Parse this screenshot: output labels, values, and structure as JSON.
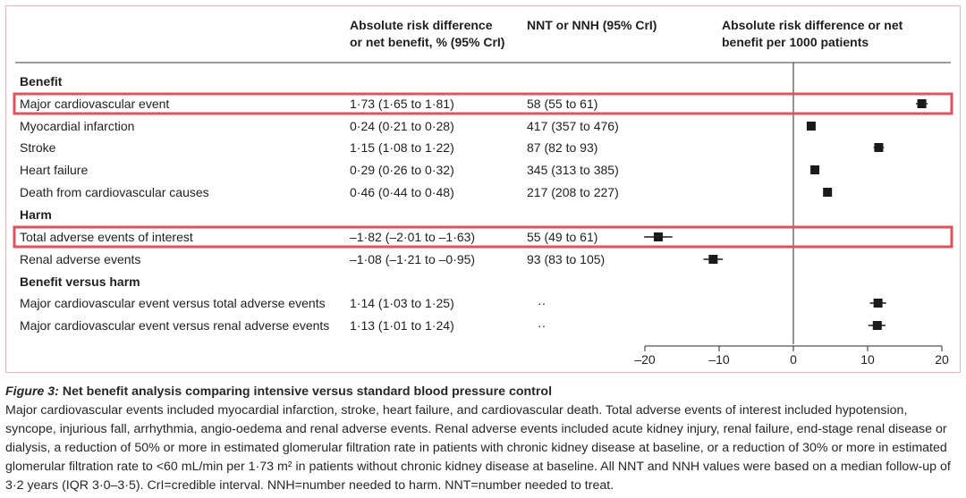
{
  "columns": {
    "risk_difference_line1": "Absolute risk difference",
    "risk_difference_line2": "or net benefit, % (95% CrI)",
    "nnt": "NNT or NNH (95% CrI)",
    "forest_line1": "Absolute risk difference or net",
    "forest_line2": "benefit per 1000 patients"
  },
  "sections": [
    {
      "label": "Benefit"
    },
    {
      "label": "Harm"
    },
    {
      "label": "Benefit versus harm"
    }
  ],
  "rows": [
    {
      "label": "Major cardiovascular event",
      "risk": "1·73 (1·65 to 1·81)",
      "nnt": "58 (55 to 61)",
      "highlighted": true
    },
    {
      "label": "Myocardial infarction",
      "risk": "0·24 (0·21 to 0·28)",
      "nnt": "417 (357 to 476)",
      "highlighted": false
    },
    {
      "label": "Stroke",
      "risk": "1·15 (1·08 to 1·22)",
      "nnt": "87 (82 to 93)",
      "highlighted": false
    },
    {
      "label": "Heart failure",
      "risk": "0·29 (0·26 to 0·32)",
      "nnt": "345 (313 to 385)",
      "highlighted": false
    },
    {
      "label": "Death from cardiovascular causes",
      "risk": "0·46 (0·44 to 0·48)",
      "nnt": "217 (208 to 227)",
      "highlighted": false
    },
    {
      "label": "Total adverse events of interest",
      "risk": "–1·82 (–2·01 to –1·63)",
      "nnt": "55 (49 to 61)",
      "highlighted": true
    },
    {
      "label": "Renal adverse events",
      "risk": "–1·08 (–1·21 to –0·95)",
      "nnt": "93 (83 to 105)",
      "highlighted": false
    },
    {
      "label": "Major cardiovascular event versus total adverse events",
      "risk": "1·14 (1·03 to 1·25)",
      "nnt": "··",
      "highlighted": false
    },
    {
      "label": "Major cardiovascular event versus renal adverse events",
      "risk": "1·13 (1·01 to 1·24)",
      "nnt": "··",
      "highlighted": false
    }
  ],
  "chart_data": {
    "type": "scatter",
    "x_ticks": [
      -20,
      -10,
      0,
      10,
      20
    ],
    "x_tick_labels": [
      "–20",
      "–10",
      "0",
      "10",
      "20"
    ],
    "xlim": [
      -20,
      20
    ],
    "reference_line": 0,
    "points": [
      {
        "category": "Major cardiovascular event",
        "value": 17.3,
        "lower": 16.5,
        "upper": 18.1
      },
      {
        "category": "Myocardial infarction",
        "value": 2.4,
        "lower": 2.1,
        "upper": 2.8
      },
      {
        "category": "Stroke",
        "value": 11.5,
        "lower": 10.8,
        "upper": 12.2
      },
      {
        "category": "Heart failure",
        "value": 2.9,
        "lower": 2.6,
        "upper": 3.2
      },
      {
        "category": "Death from cardiovascular causes",
        "value": 4.6,
        "lower": 4.4,
        "upper": 4.8
      },
      {
        "category": "Total adverse events of interest",
        "value": -18.2,
        "lower": -20.1,
        "upper": -16.3
      },
      {
        "category": "Renal adverse events",
        "value": -10.8,
        "lower": -12.1,
        "upper": -9.5
      },
      {
        "category": "Major cardiovascular event versus total adverse events",
        "value": 11.4,
        "lower": 10.3,
        "upper": 12.5
      },
      {
        "category": "Major cardiovascular event versus renal adverse events",
        "value": 11.3,
        "lower": 10.1,
        "upper": 12.4
      }
    ],
    "marker_color": "#1a1a1a",
    "highlight_color": "#e0535c"
  },
  "caption": {
    "figure_label": "Figure 3:",
    "title": "Net benefit analysis comparing intensive versus standard blood pressure control",
    "body": "Major cardiovascular events included myocardial infarction, stroke, heart failure, and cardiovascular death. Total adverse events of interest included hypotension, syncope, injurious fall, arrhythmia, angio-oedema and renal adverse events. Renal adverse events included acute kidney injury, renal failure, end-stage renal disease or dialysis, a reduction of 50% or more in estimated glomerular filtration rate in patients with chronic kidney disease at baseline, or a reduction of 30% or more in estimated glomerular filtration rate to <60 mL/min per 1·73 m² in patients without chronic kidney disease at baseline. All NNT and NNH values were based on a median follow-up of 3·2 years (IQR 3·0–3·5). CrI=credible interval. NNH=number needed to harm. NNT=number needed to treat."
  }
}
